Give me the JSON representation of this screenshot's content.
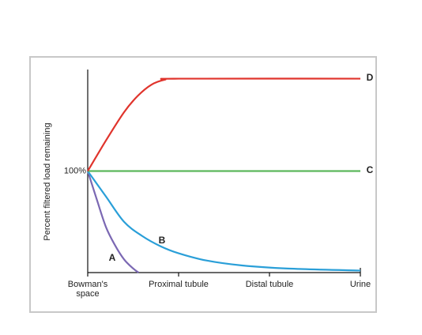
{
  "chart_data": {
    "type": "line",
    "y_label": "Percent filtered load remaining",
    "xlim": [
      0,
      3
    ],
    "xticks": [
      {
        "value": 0,
        "label": "Bowman's space"
      },
      {
        "value": 1,
        "label": "Proximal tubule"
      },
      {
        "value": 2,
        "label": "Distal tubule"
      },
      {
        "value": 3,
        "label": "Urine"
      }
    ],
    "ylim": [
      0,
      200
    ],
    "yticks": [
      {
        "value": 100,
        "label": "100%"
      }
    ],
    "series": [
      {
        "name": "A",
        "color": "#7b68b3",
        "x": [
          0,
          0.1,
          0.2,
          0.3,
          0.4,
          0.5,
          0.56
        ],
        "values": [
          100,
          72,
          45,
          27,
          13,
          4,
          0
        ]
      },
      {
        "name": "B",
        "color": "#2a9fd8",
        "x": [
          0,
          0.2,
          0.4,
          0.6,
          0.8,
          1,
          1.3,
          1.7,
          2.2,
          3
        ],
        "values": [
          100,
          75,
          50,
          36,
          26,
          19,
          12,
          7,
          4,
          2
        ]
      },
      {
        "name": "C",
        "color": "#5cb85c",
        "x": [
          0,
          3
        ],
        "values": [
          100,
          100
        ]
      },
      {
        "name": "D",
        "color": "#e0342c",
        "x": [
          0,
          0.2,
          0.4,
          0.55,
          0.7,
          0.85,
          1,
          3
        ],
        "values": [
          100,
          130,
          158,
          174,
          185,
          190,
          191,
          191
        ]
      }
    ]
  }
}
